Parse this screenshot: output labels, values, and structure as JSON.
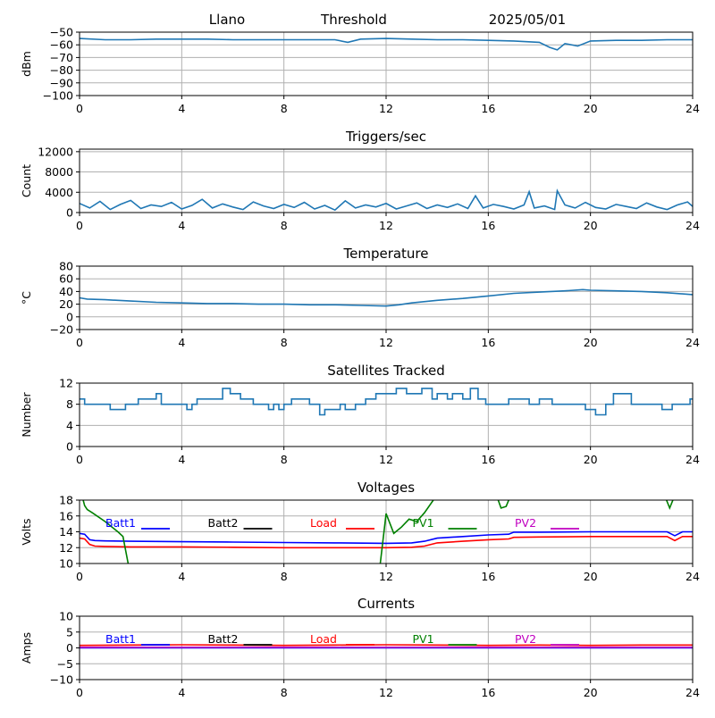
{
  "header": {
    "station": "Llano",
    "mode": "Threshold",
    "date": "2025/05/01"
  },
  "colors": {
    "series": "#1f77b4",
    "grid": "#b0b0b0",
    "axis": "#000000",
    "batt1": "#0000ff",
    "batt2": "#000000",
    "load": "#ff0000",
    "pv1": "#008000",
    "pv2": "#c000c0"
  },
  "chart_data": [
    {
      "type": "line",
      "title": "",
      "ylabel": "dBm",
      "xlim": [
        0,
        24
      ],
      "ylim": [
        -100,
        -50
      ],
      "xticks": [
        0,
        4,
        8,
        12,
        16,
        20,
        24
      ],
      "yticks": [
        -100,
        -90,
        -80,
        -70,
        -60,
        -50
      ],
      "grid": true,
      "series": [
        {
          "color": "#1f77b4",
          "x": [
            0,
            1,
            2,
            3,
            4,
            5,
            6,
            7,
            8,
            9,
            10,
            10.5,
            11,
            12,
            13,
            14,
            15,
            16,
            17,
            18,
            18.4,
            18.7,
            19,
            19.5,
            20,
            21,
            22,
            23,
            24
          ],
          "y": [
            -55,
            -56,
            -56,
            -55.5,
            -55.5,
            -55.5,
            -56,
            -56,
            -56,
            -56,
            -56,
            -58,
            -55.5,
            -55,
            -55.5,
            -56,
            -56,
            -56.5,
            -57,
            -58,
            -62,
            -64,
            -59,
            -61,
            -57,
            -56.5,
            -56.5,
            -56,
            -56
          ]
        }
      ]
    },
    {
      "type": "line",
      "title": "Triggers/sec",
      "ylabel": "Count",
      "xlim": [
        0,
        24
      ],
      "ylim": [
        0,
        12500
      ],
      "xticks": [
        0,
        4,
        8,
        12,
        16,
        20,
        24
      ],
      "yticks": [
        0,
        4000,
        8000,
        12000
      ],
      "grid": true,
      "series": [
        {
          "color": "#1f77b4",
          "x": [
            0,
            0.4,
            0.8,
            1.2,
            1.6,
            2,
            2.4,
            2.8,
            3.2,
            3.6,
            4,
            4.4,
            4.8,
            5.2,
            5.6,
            6,
            6.4,
            6.8,
            7.2,
            7.6,
            8,
            8.4,
            8.8,
            9.2,
            9.6,
            10,
            10.4,
            10.8,
            11.2,
            11.6,
            12,
            12.4,
            12.8,
            13.2,
            13.6,
            14,
            14.4,
            14.8,
            15.2,
            15.5,
            15.8,
            16.2,
            16.6,
            17,
            17.4,
            17.6,
            17.8,
            18.2,
            18.6,
            18.7,
            19,
            19.4,
            19.8,
            20.2,
            20.6,
            21,
            21.4,
            21.8,
            22.2,
            22.6,
            23,
            23.4,
            23.8,
            24
          ],
          "y": [
            1800,
            900,
            2200,
            600,
            1600,
            2400,
            800,
            1500,
            1200,
            2000,
            700,
            1400,
            2600,
            900,
            1700,
            1100,
            600,
            2100,
            1300,
            800,
            1600,
            1000,
            2000,
            700,
            1400,
            500,
            2300,
            900,
            1500,
            1100,
            1800,
            700,
            1300,
            1900,
            800,
            1500,
            1000,
            1700,
            800,
            3300,
            900,
            1600,
            1200,
            700,
            1500,
            4100,
            900,
            1300,
            600,
            4300,
            1500,
            900,
            2000,
            1000,
            700,
            1600,
            1200,
            800,
            1900,
            1100,
            600,
            1500,
            2100,
            1200
          ]
        }
      ]
    },
    {
      "type": "line",
      "title": "Temperature",
      "ylabel": "°C",
      "xlim": [
        0,
        24
      ],
      "ylim": [
        -20,
        80
      ],
      "xticks": [
        0,
        4,
        8,
        12,
        16,
        20,
        24
      ],
      "yticks": [
        -20,
        0,
        20,
        40,
        60,
        80
      ],
      "grid": true,
      "series": [
        {
          "color": "#1f77b4",
          "x": [
            0,
            0.3,
            1,
            2,
            3,
            4,
            5,
            6,
            7,
            8,
            9,
            10,
            11,
            12,
            12.5,
            13,
            14,
            15,
            16,
            17,
            18,
            19,
            19.7,
            20,
            21,
            22,
            23,
            24
          ],
          "y": [
            30,
            28,
            27,
            25,
            23,
            22,
            21,
            21,
            20,
            20,
            19,
            19,
            18,
            17,
            19,
            22,
            26,
            29,
            33,
            37,
            39,
            41,
            43,
            42,
            41,
            40,
            38,
            35
          ]
        }
      ]
    },
    {
      "type": "line",
      "title": "Satellites Tracked",
      "ylabel": "Number",
      "xlim": [
        0,
        24
      ],
      "ylim": [
        0,
        12
      ],
      "xticks": [
        0,
        4,
        8,
        12,
        16,
        20,
        24
      ],
      "yticks": [
        0,
        4,
        8,
        12
      ],
      "grid": true,
      "step": true,
      "series": [
        {
          "color": "#1f77b4",
          "x": [
            0,
            0.2,
            0.7,
            1.2,
            1.5,
            1.8,
            2.3,
            2.8,
            3.0,
            3.2,
            3.4,
            4.0,
            4.2,
            4.4,
            4.6,
            5.3,
            5.6,
            5.9,
            6.3,
            6.8,
            7.0,
            7.4,
            7.6,
            7.8,
            8.0,
            8.3,
            8.6,
            9.0,
            9.4,
            9.6,
            9.8,
            10.2,
            10.4,
            10.8,
            11.2,
            11.6,
            12.0,
            12.4,
            12.8,
            13.1,
            13.4,
            13.8,
            14.0,
            14.4,
            14.6,
            15.0,
            15.3,
            15.6,
            15.9,
            16.3,
            16.8,
            17.2,
            17.6,
            18.0,
            18.5,
            19.0,
            19.4,
            19.8,
            20.2,
            20.6,
            20.9,
            21.3,
            21.6,
            22.0,
            22.4,
            22.8,
            23.2,
            23.6,
            23.9
          ],
          "y": [
            9,
            8,
            8,
            7,
            7,
            8,
            9,
            9,
            10,
            8,
            8,
            8,
            7,
            8,
            9,
            9,
            11,
            10,
            9,
            8,
            8,
            7,
            8,
            7,
            8,
            9,
            9,
            8,
            6,
            7,
            7,
            8,
            7,
            8,
            9,
            10,
            10,
            11,
            10,
            10,
            11,
            9,
            10,
            9,
            10,
            9,
            11,
            9,
            8,
            8,
            9,
            9,
            8,
            9,
            8,
            8,
            8,
            7,
            6,
            8,
            10,
            10,
            8,
            8,
            8,
            7,
            8,
            8,
            9
          ]
        }
      ]
    },
    {
      "type": "line",
      "title": "Voltages",
      "ylabel": "Volts",
      "xlim": [
        0,
        24
      ],
      "ylim": [
        10,
        18
      ],
      "xticks": [
        0,
        4,
        8,
        12,
        16,
        20,
        24
      ],
      "yticks": [
        10,
        12,
        14,
        16,
        18
      ],
      "grid": true,
      "legend": "top",
      "series": [
        {
          "name": "Batt1",
          "color": "#0000ff",
          "x": [
            0,
            0.2,
            0.4,
            0.6,
            1,
            2,
            4,
            6,
            8,
            10,
            12,
            13,
            13.5,
            14,
            15,
            16,
            16.8,
            17,
            18,
            20,
            22,
            23,
            23.3,
            23.6,
            24
          ],
          "y": [
            13.8,
            13.7,
            13.0,
            12.9,
            12.85,
            12.8,
            12.75,
            12.7,
            12.65,
            12.6,
            12.55,
            12.6,
            12.8,
            13.2,
            13.4,
            13.6,
            13.7,
            13.95,
            13.95,
            14.0,
            14.0,
            14.0,
            13.5,
            14.0,
            14.0
          ]
        },
        {
          "name": "Batt2",
          "color": "#000000",
          "x": [],
          "y": []
        },
        {
          "name": "Load",
          "color": "#ff0000",
          "x": [
            0,
            0.2,
            0.4,
            0.6,
            1,
            2,
            4,
            6,
            8,
            10,
            12,
            13,
            13.5,
            14,
            15,
            16,
            16.8,
            17,
            18,
            20,
            22,
            23,
            23.3,
            23.6,
            24
          ],
          "y": [
            13.2,
            13.1,
            12.4,
            12.2,
            12.15,
            12.1,
            12.1,
            12.05,
            12.0,
            12.0,
            12.0,
            12.05,
            12.2,
            12.6,
            12.8,
            13.0,
            13.1,
            13.3,
            13.35,
            13.4,
            13.4,
            13.4,
            12.9,
            13.4,
            13.4
          ]
        },
        {
          "name": "PV1",
          "color": "#008000",
          "x": [
            0.1,
            0.2,
            0.3,
            0.5,
            1.0,
            1.5,
            1.7,
            2.2
          ],
          "y": [
            18.5,
            17.3,
            16.8,
            16.4,
            15.3,
            14.0,
            13.4,
            5.0
          ]
        },
        {
          "name": "PV1",
          "color": "#008000",
          "x": [
            11.7,
            12.0,
            12.3,
            12.6,
            12.9,
            13.2,
            13.5,
            14.5
          ],
          "y": [
            8.0,
            16.3,
            13.8,
            14.6,
            15.6,
            15.3,
            16.4,
            21.0
          ]
        },
        {
          "name": "PV1",
          "color": "#008000",
          "x": [
            16.3,
            16.5,
            16.7,
            16.9
          ],
          "y": [
            18.8,
            17.0,
            17.2,
            18.8
          ]
        },
        {
          "name": "PV1",
          "color": "#008000",
          "x": [
            22.9,
            23.1,
            23.3
          ],
          "y": [
            18.6,
            17.0,
            18.6
          ]
        },
        {
          "name": "PV2",
          "color": "#c000c0",
          "x": [],
          "y": []
        }
      ]
    },
    {
      "type": "line",
      "title": "Currents",
      "ylabel": "Amps",
      "xlim": [
        0,
        24
      ],
      "ylim": [
        -10,
        10
      ],
      "xticks": [
        0,
        4,
        8,
        12,
        16,
        20,
        24
      ],
      "yticks": [
        -10,
        -5,
        0,
        5,
        10
      ],
      "grid": true,
      "legend": "top",
      "series": [
        {
          "name": "Batt1",
          "color": "#0000ff",
          "x": [
            0,
            24
          ],
          "y": [
            0,
            0
          ]
        },
        {
          "name": "Batt2",
          "color": "#000000",
          "x": [],
          "y": []
        },
        {
          "name": "Load",
          "color": "#ff0000",
          "x": [
            0,
            2,
            4,
            6,
            8,
            10,
            12,
            14,
            16,
            18,
            20,
            22,
            24
          ],
          "y": [
            0.8,
            0.9,
            1.0,
            0.9,
            0.8,
            0.9,
            1.0,
            0.9,
            0.8,
            0.9,
            0.8,
            0.9,
            0.9
          ]
        },
        {
          "name": "PV1",
          "color": "#008000",
          "x": [],
          "y": []
        },
        {
          "name": "PV2",
          "color": "#c000c0",
          "x": [
            0,
            24
          ],
          "y": [
            0.2,
            0.2
          ]
        }
      ]
    }
  ]
}
